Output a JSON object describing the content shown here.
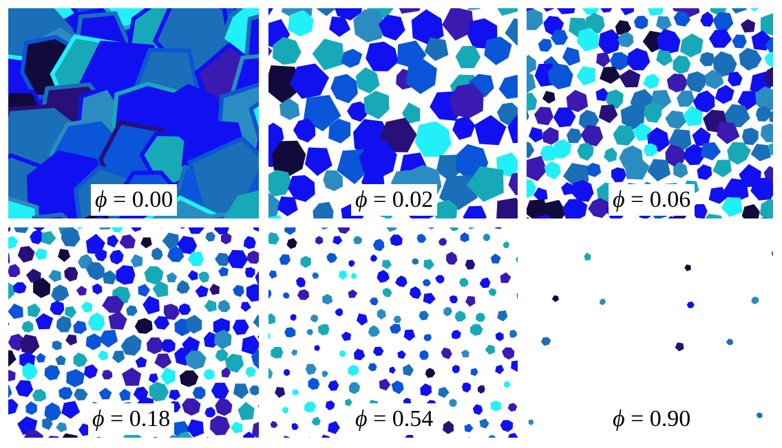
{
  "colors": {
    "palette": [
      "#1010f0",
      "#0a55d8",
      "#1a6fb8",
      "#2a8cc0",
      "#18a9b8",
      "#22f0f8",
      "#3a1ab0",
      "#281078",
      "#120a3a"
    ],
    "background": "#ffffff"
  },
  "panels": [
    {
      "symbol": "ϕ",
      "value_text": "= 0.00",
      "phi": 0.0
    },
    {
      "symbol": "ϕ",
      "value_text": "= 0.02",
      "phi": 0.02
    },
    {
      "symbol": "ϕ",
      "value_text": "= 0.06",
      "phi": 0.06
    },
    {
      "symbol": "ϕ",
      "value_text": "= 0.18",
      "phi": 0.18
    },
    {
      "symbol": "ϕ",
      "value_text": "= 0.54",
      "phi": 0.54
    },
    {
      "symbol": "ϕ",
      "value_text": "= 0.90",
      "phi": 0.9
    }
  ]
}
